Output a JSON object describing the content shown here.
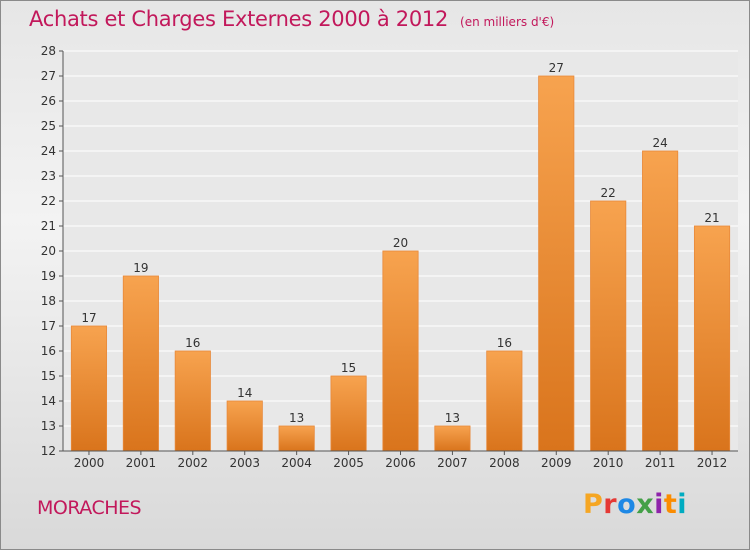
{
  "header": {
    "title": "Achats et Charges Externes 2000 à 2012",
    "subtitle": "(en milliers d'€)"
  },
  "footer": {
    "commune": "MORACHES",
    "logo_text": "Proxiti",
    "logo_colors": [
      "#f5a623",
      "#e53935",
      "#1e88e5",
      "#43a047",
      "#8e24aa",
      "#fb8c00",
      "#00acc1"
    ]
  },
  "colors": {
    "title": "#c2185b",
    "bar_top": "#f7a34f",
    "bar_bottom": "#d9741c",
    "bar_edge": "#e8893a",
    "grid": "#ffffff",
    "plot_bg": "#e8e8e8"
  },
  "chart_data": {
    "type": "bar",
    "title": "Achats et Charges Externes 2000 à 2012",
    "subtitle": "(en milliers d'€)",
    "xlabel": "",
    "ylabel": "",
    "categories": [
      "2000",
      "2001",
      "2002",
      "2003",
      "2004",
      "2005",
      "2006",
      "2007",
      "2008",
      "2009",
      "2010",
      "2011",
      "2012"
    ],
    "values": [
      17,
      19,
      16,
      14,
      13,
      15,
      20,
      13,
      16,
      27,
      22,
      24,
      21
    ],
    "ylim": [
      12,
      28
    ],
    "yticks": [
      12,
      13,
      14,
      15,
      16,
      17,
      18,
      19,
      20,
      21,
      22,
      23,
      24,
      25,
      26,
      27,
      28
    ],
    "grid": true,
    "data_labels": true
  }
}
